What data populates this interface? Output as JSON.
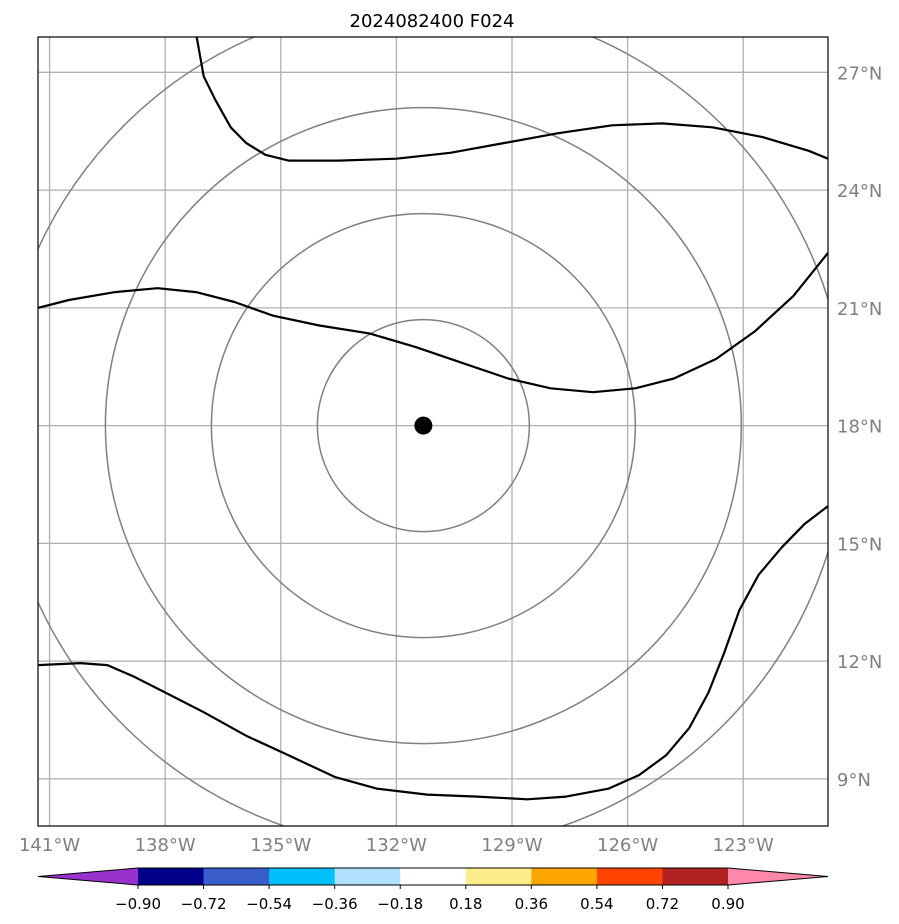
{
  "chart_data": {
    "type": "map",
    "title": "2024082400 F024",
    "lon_range": [
      -141.3,
      -120.8
    ],
    "lat_range": [
      7.8,
      27.9
    ],
    "lon_ticks": [
      -141,
      -138,
      -135,
      -132,
      -129,
      -126,
      -123
    ],
    "lon_tick_labels": [
      "141°W",
      "138°W",
      "135°W",
      "132°W",
      "129°W",
      "126°W",
      "123°W"
    ],
    "lat_ticks": [
      9,
      12,
      15,
      18,
      21,
      24,
      27
    ],
    "lat_tick_labels": [
      "9°N",
      "12°N",
      "15°N",
      "18°N",
      "21°N",
      "24°N",
      "27°N"
    ],
    "grid": true,
    "center": {
      "lon": -131.3,
      "lat": 18.0
    },
    "range_rings_deg_lat": [
      2.7,
      5.4,
      8.1,
      10.8
    ],
    "contours": [
      [
        [
          -137.2,
          28.0
        ],
        [
          -137.0,
          26.9
        ],
        [
          -136.7,
          26.3
        ],
        [
          -136.3,
          25.6
        ],
        [
          -135.9,
          25.2
        ],
        [
          -135.4,
          24.9
        ],
        [
          -134.8,
          24.75
        ],
        [
          -133.5,
          24.75
        ],
        [
          -132.0,
          24.8
        ],
        [
          -130.6,
          24.95
        ],
        [
          -129.2,
          25.2
        ],
        [
          -127.8,
          25.45
        ],
        [
          -126.4,
          25.65
        ],
        [
          -125.1,
          25.7
        ],
        [
          -123.8,
          25.6
        ],
        [
          -122.5,
          25.35
        ],
        [
          -121.3,
          25.0
        ],
        [
          -120.8,
          24.8
        ]
      ],
      [
        [
          -141.3,
          21.0
        ],
        [
          -140.5,
          21.2
        ],
        [
          -139.3,
          21.4
        ],
        [
          -138.2,
          21.5
        ],
        [
          -137.2,
          21.4
        ],
        [
          -136.2,
          21.15
        ],
        [
          -135.2,
          20.8
        ],
        [
          -134.0,
          20.55
        ],
        [
          -132.7,
          20.35
        ],
        [
          -131.5,
          20.0
        ],
        [
          -130.3,
          19.6
        ],
        [
          -129.1,
          19.2
        ],
        [
          -128.0,
          18.95
        ],
        [
          -126.9,
          18.85
        ],
        [
          -125.8,
          18.95
        ],
        [
          -124.8,
          19.2
        ],
        [
          -123.7,
          19.7
        ],
        [
          -122.7,
          20.4
        ],
        [
          -121.7,
          21.3
        ],
        [
          -120.8,
          22.4
        ]
      ],
      [
        [
          -141.3,
          11.9
        ],
        [
          -140.2,
          11.95
        ],
        [
          -139.5,
          11.9
        ],
        [
          -138.8,
          11.6
        ],
        [
          -138.0,
          11.2
        ],
        [
          -137.0,
          10.7
        ],
        [
          -135.9,
          10.1
        ],
        [
          -134.8,
          9.6
        ],
        [
          -133.6,
          9.05
        ],
        [
          -132.5,
          8.75
        ],
        [
          -131.2,
          8.6
        ],
        [
          -129.9,
          8.55
        ],
        [
          -128.6,
          8.48
        ],
        [
          -127.6,
          8.55
        ],
        [
          -126.5,
          8.75
        ],
        [
          -125.7,
          9.1
        ],
        [
          -125.0,
          9.6
        ],
        [
          -124.4,
          10.3
        ],
        [
          -123.9,
          11.2
        ],
        [
          -123.5,
          12.2
        ],
        [
          -123.1,
          13.3
        ],
        [
          -122.6,
          14.2
        ],
        [
          -122.0,
          14.9
        ],
        [
          -121.4,
          15.5
        ],
        [
          -120.8,
          15.95
        ]
      ]
    ],
    "colorbar": {
      "ticks": [
        "−0.90",
        "−0.72",
        "−0.54",
        "−0.36",
        "−0.18",
        "0.18",
        "0.36",
        "0.54",
        "0.72",
        "0.90"
      ],
      "colors": [
        "#9932CC",
        "#00008B",
        "#3A5FCD",
        "#00BFFF",
        "#B0E2FF",
        "#FFFFFF",
        "#FFEC8B",
        "#FFA500",
        "#FF4500",
        "#B22222",
        "#FF88AA"
      ]
    }
  }
}
